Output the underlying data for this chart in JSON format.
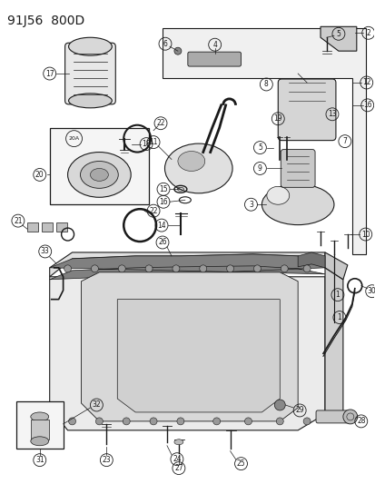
{
  "title": "91J56  800D",
  "bg_color": "#ffffff",
  "line_color": "#1a1a1a",
  "title_fontsize": 10,
  "fig_width": 4.14,
  "fig_height": 5.33,
  "dpi": 100
}
